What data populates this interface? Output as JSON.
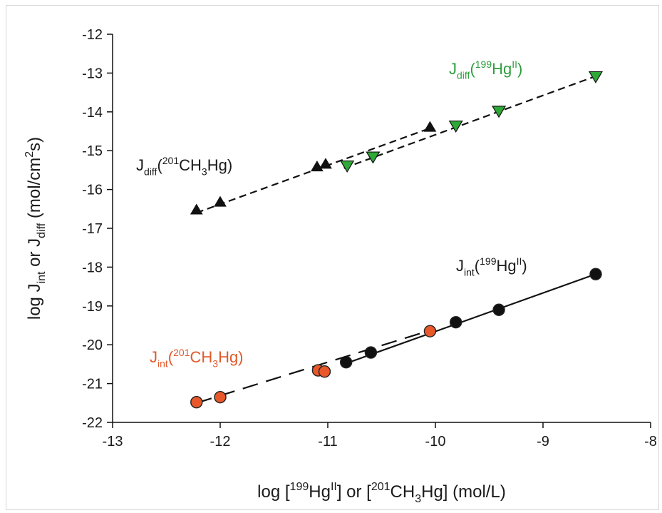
{
  "chart_data": {
    "type": "scatter",
    "xlabel": {
      "parts": [
        {
          "t": "log ["
        },
        {
          "t": "199",
          "s": "sup"
        },
        {
          "t": "Hg"
        },
        {
          "t": "II",
          "s": "sup"
        },
        {
          "t": "] or ["
        },
        {
          "t": "201",
          "s": "sup"
        },
        {
          "t": "CH"
        },
        {
          "t": "3",
          "s": "sub"
        },
        {
          "t": "Hg] (mol/L)"
        }
      ]
    },
    "ylabel": {
      "parts": [
        {
          "t": "log J"
        },
        {
          "t": "int",
          "s": "sub"
        },
        {
          "t": " or J"
        },
        {
          "t": "diff",
          "s": "sub"
        },
        {
          "t": " (mol/cm"
        },
        {
          "t": "2",
          "s": "sup"
        },
        {
          "t": "s)"
        }
      ]
    },
    "xlim": [
      -13,
      -8
    ],
    "ylim": [
      -22,
      -12
    ],
    "xticks": [
      -13,
      -12,
      -11,
      -10,
      -9,
      -8
    ],
    "yticks": [
      -22,
      -21,
      -20,
      -19,
      -18,
      -17,
      -16,
      -15,
      -14,
      -13,
      -12
    ],
    "grid": false,
    "series": [
      {
        "label": {
          "parts": [
            {
              "t": "J"
            },
            {
              "t": "diff",
              "s": "sub"
            },
            {
              "t": "("
            },
            {
              "t": "199",
              "s": "sup"
            },
            {
              "t": "Hg"
            },
            {
              "t": "II",
              "s": "sup"
            },
            {
              "t": ")"
            }
          ]
        },
        "label_color": "#2e9e3e",
        "marker": "triangle-down",
        "color": "#2ea836",
        "line": "dashed",
        "fit": [
          [
            -10.85,
            -15.45
          ],
          [
            -8.5,
            -13.07
          ]
        ],
        "points": [
          {
            "x": -10.82,
            "y": -15.38
          },
          {
            "x": -10.58,
            "y": -15.15
          },
          {
            "x": -9.81,
            "y": -14.35
          },
          {
            "x": -9.41,
            "y": -13.97
          },
          {
            "x": -8.51,
            "y": -13.08
          }
        ]
      },
      {
        "label": {
          "parts": [
            {
              "t": "J"
            },
            {
              "t": "diff",
              "s": "sub"
            },
            {
              "t": "("
            },
            {
              "t": "201",
              "s": "sup"
            },
            {
              "t": "CH"
            },
            {
              "t": "3",
              "s": "sub"
            },
            {
              "t": "Hg)"
            }
          ]
        },
        "label_color": "#1a1a1a",
        "marker": "triangle-up",
        "color": "#111111",
        "line": "dashed",
        "fit": [
          [
            -12.22,
            -16.6
          ],
          [
            -10.05,
            -14.42
          ]
        ],
        "points": [
          {
            "x": -12.22,
            "y": -16.53
          },
          {
            "x": -12.0,
            "y": -16.33
          },
          {
            "x": -11.1,
            "y": -15.42
          },
          {
            "x": -11.02,
            "y": -15.35
          },
          {
            "x": -10.05,
            "y": -14.4
          }
        ]
      },
      {
        "label": {
          "parts": [
            {
              "t": "J"
            },
            {
              "t": "int",
              "s": "sub"
            },
            {
              "t": "("
            },
            {
              "t": "199",
              "s": "sup"
            },
            {
              "t": "Hg"
            },
            {
              "t": "II",
              "s": "sup"
            },
            {
              "t": ")"
            }
          ]
        },
        "label_color": "#1a1a1a",
        "marker": "circle",
        "color": "#111111",
        "line": "solid",
        "fit": [
          [
            -10.85,
            -20.5
          ],
          [
            -8.5,
            -18.17
          ]
        ],
        "points": [
          {
            "x": -10.83,
            "y": -20.45
          },
          {
            "x": -10.6,
            "y": -20.2
          },
          {
            "x": -9.81,
            "y": -19.42
          },
          {
            "x": -9.41,
            "y": -19.1
          },
          {
            "x": -8.51,
            "y": -18.18
          }
        ]
      },
      {
        "label": {
          "parts": [
            {
              "t": "J"
            },
            {
              "t": "int",
              "s": "sub"
            },
            {
              "t": "("
            },
            {
              "t": "201",
              "s": "sup"
            },
            {
              "t": "CH"
            },
            {
              "t": "3",
              "s": "sub"
            },
            {
              "t": "Hg)"
            }
          ]
        },
        "label_color": "#e05a2b",
        "marker": "circle",
        "color": "#e8582a",
        "line": "long-dashed",
        "fit": [
          [
            -12.22,
            -21.5
          ],
          [
            -10.05,
            -19.63
          ]
        ],
        "points": [
          {
            "x": -12.22,
            "y": -21.48
          },
          {
            "x": -12.0,
            "y": -21.35
          },
          {
            "x": -11.09,
            "y": -20.66
          },
          {
            "x": -11.03,
            "y": -20.69
          },
          {
            "x": -10.05,
            "y": -19.65
          }
        ]
      }
    ]
  }
}
